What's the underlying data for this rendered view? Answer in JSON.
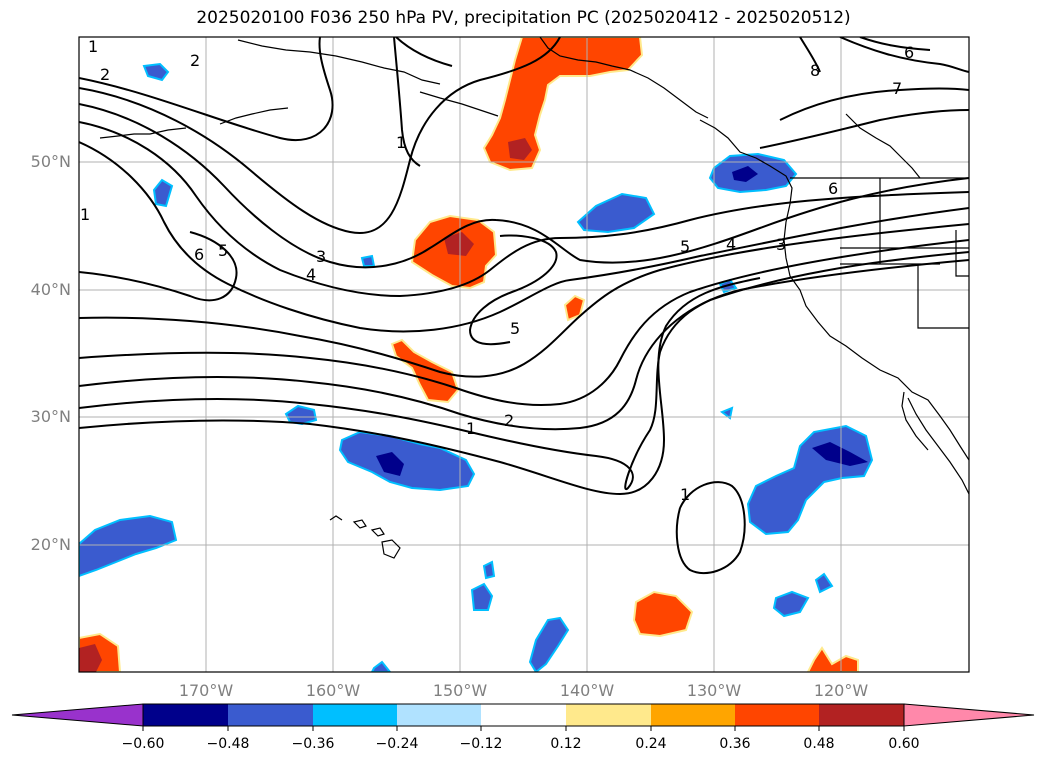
{
  "title": "2025020100 F036 250 hPa PV, precipitation PC (2025020412 - 2025020512)",
  "map": {
    "lon_range": [
      -180,
      -110
    ],
    "lat_range": [
      10,
      60
    ],
    "lat_labels": [
      "50°N",
      "40°N",
      "30°N",
      "20°N"
    ],
    "lon_labels": [
      "170°W",
      "160°W",
      "150°W",
      "140°W",
      "130°W",
      "120°W"
    ],
    "contour_labels": [
      "1",
      "2",
      "2",
      "1",
      "6",
      "5",
      "3",
      "4",
      "1",
      "5",
      "4",
      "3",
      "6",
      "8",
      "7",
      "6",
      "5",
      "2",
      "1",
      "1"
    ],
    "colors": {
      "coast": "#000000",
      "grid": "#b0b0b0",
      "contour": "#000000"
    }
  },
  "colorbar": {
    "tick_labels": [
      "−0.60",
      "−0.48",
      "−0.36",
      "−0.24",
      "−0.12",
      "0.12",
      "0.24",
      "0.36",
      "0.48",
      "0.60"
    ],
    "colors": [
      "#9932cc",
      "#00008b",
      "#3a5bcf",
      "#00bfff",
      "#b0e2ff",
      "#ffffff",
      "#ffe98c",
      "#ffa500",
      "#ff4500",
      "#b22222",
      "#ff88aa"
    ]
  }
}
